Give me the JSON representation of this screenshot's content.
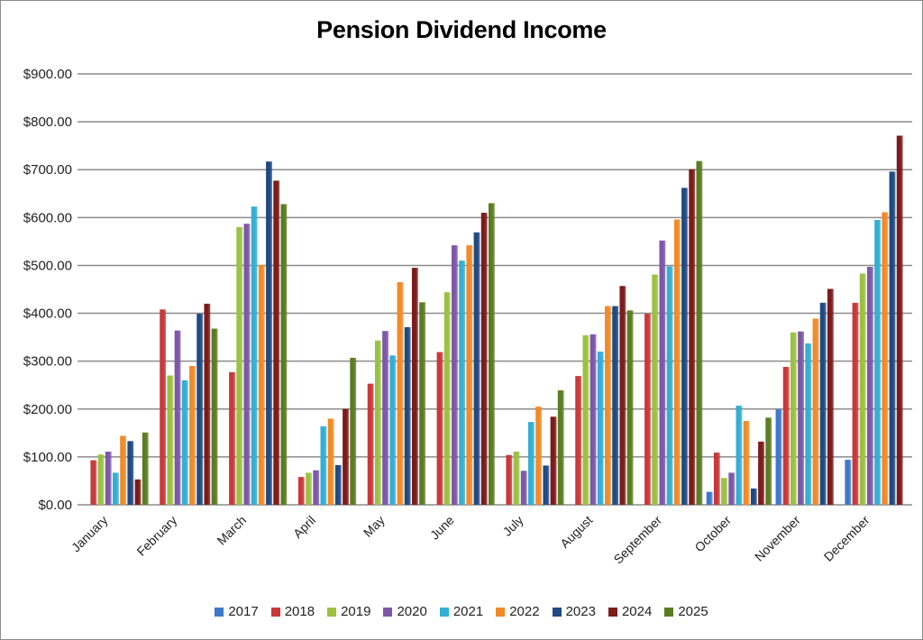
{
  "chart_data": {
    "type": "bar",
    "title": "Pension Dividend Income",
    "xlabel": "",
    "ylabel": "",
    "ylim": [
      0,
      900
    ],
    "yticks": [
      "$0.00",
      "$100.00",
      "$200.00",
      "$300.00",
      "$400.00",
      "$500.00",
      "$600.00",
      "$700.00",
      "$800.00",
      "$900.00"
    ],
    "grid": true,
    "legend_position": "bottom",
    "categories": [
      "January",
      "February",
      "March",
      "April",
      "May",
      "June",
      "July",
      "August",
      "September",
      "October",
      "November",
      "December"
    ],
    "series": [
      {
        "name": "2017",
        "color": "#3f78c7",
        "values": [
          0,
          0,
          0,
          0,
          0,
          0,
          0,
          0,
          0,
          27,
          199,
          94
        ]
      },
      {
        "name": "2018",
        "color": "#c9383a",
        "values": [
          93,
          408,
          277,
          58,
          253,
          319,
          104,
          269,
          399,
          109,
          288,
          422
        ]
      },
      {
        "name": "2019",
        "color": "#9bc143",
        "values": [
          105,
          270,
          580,
          67,
          343,
          444,
          111,
          354,
          481,
          56,
          360,
          483
        ]
      },
      {
        "name": "2020",
        "color": "#7d57a8",
        "values": [
          111,
          364,
          587,
          72,
          363,
          542,
          71,
          356,
          552,
          67,
          362,
          497
        ]
      },
      {
        "name": "2021",
        "color": "#33afd3",
        "values": [
          67,
          260,
          623,
          164,
          312,
          510,
          173,
          320,
          498,
          207,
          337,
          595
        ]
      },
      {
        "name": "2022",
        "color": "#f28a28",
        "values": [
          144,
          290,
          501,
          180,
          465,
          542,
          205,
          415,
          596,
          175,
          389,
          611
        ]
      },
      {
        "name": "2023",
        "color": "#1f4a82",
        "values": [
          133,
          399,
          717,
          83,
          371,
          569,
          82,
          415,
          662,
          34,
          422,
          696
        ]
      },
      {
        "name": "2024",
        "color": "#7d1a1a",
        "values": [
          53,
          420,
          677,
          200,
          495,
          610,
          184,
          457,
          701,
          132,
          451,
          771
        ]
      },
      {
        "name": "2025",
        "color": "#5b7d22",
        "values": [
          151,
          368,
          628,
          307,
          423,
          630,
          239,
          406,
          718,
          182,
          0,
          0
        ]
      }
    ]
  }
}
